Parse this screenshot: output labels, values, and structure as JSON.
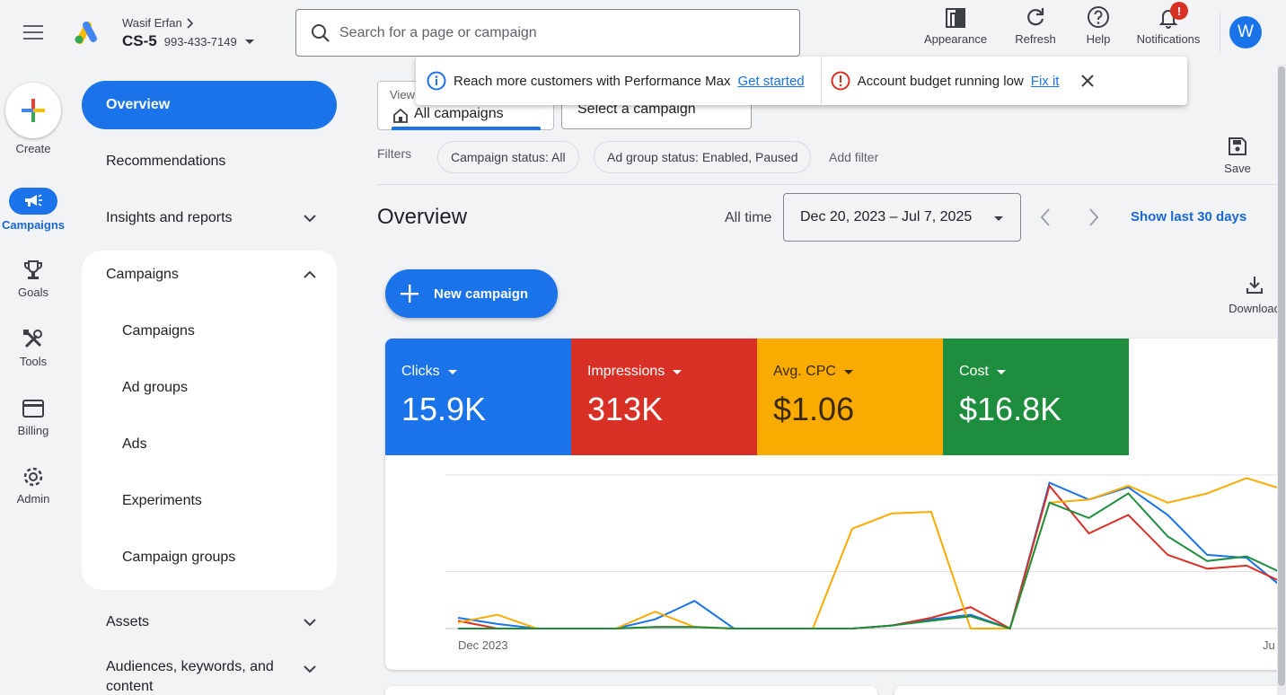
{
  "header": {
    "account_name": "Wasif Erfan",
    "account_code": "CS-5",
    "account_id": "993-433-7149",
    "search_placeholder": "Search for a page or campaign",
    "actions": {
      "appearance": "Appearance",
      "refresh": "Refresh",
      "help": "Help",
      "notifications": "Notifications"
    },
    "notification_badge": "!",
    "avatar_initial": "W"
  },
  "rail": {
    "create": "Create",
    "campaigns": "Campaigns",
    "goals": "Goals",
    "tools": "Tools",
    "billing": "Billing",
    "admin": "Admin"
  },
  "nav": {
    "overview": "Overview",
    "recommendations": "Recommendations",
    "insights": "Insights and reports",
    "campaigns_group": "Campaigns",
    "sub": [
      "Campaigns",
      "Ad groups",
      "Ads",
      "Experiments",
      "Campaign groups"
    ],
    "assets": "Assets",
    "audiences": "Audiences, keywords, and content"
  },
  "view": {
    "caption": "View",
    "value": "All campaigns",
    "campaign_select": "Select a campaign"
  },
  "banner": {
    "pmax_text": "Reach more customers with Performance Max",
    "pmax_link": "Get started",
    "budget_text": "Account budget running low",
    "budget_link": "Fix it"
  },
  "filters": {
    "label": "Filters",
    "chips": [
      "Campaign status: All",
      "Ad group status: Enabled, Paused"
    ],
    "add": "Add filter",
    "save": "Save"
  },
  "overview": {
    "title": "Overview",
    "range_label": "All time",
    "date_range": "Dec 20, 2023 – Jul 7, 2025",
    "show_last": "Show last 30 days",
    "new_campaign": "New campaign",
    "download": "Download"
  },
  "metrics": [
    {
      "name": "Clicks",
      "value": "15.9K",
      "color": "#1a73e8"
    },
    {
      "name": "Impressions",
      "value": "313K",
      "color": "#d93025"
    },
    {
      "name": "Avg. CPC",
      "value": "$1.06",
      "color": "#f9ab00"
    },
    {
      "name": "Cost",
      "value": "$16.8K",
      "color": "#1e8e3e"
    }
  ],
  "chart_data": {
    "type": "line",
    "x_tick_labels": [
      "Dec 2023",
      "Ju"
    ],
    "y_scale": "relative (0–100, no tick labels)",
    "grid": true,
    "series": [
      {
        "color": "#1a73e8",
        "values": [
          7,
          3,
          0,
          0,
          0,
          6,
          18,
          0,
          0,
          0,
          0,
          2,
          6,
          9,
          0,
          95,
          84,
          92,
          74,
          48,
          46,
          25
        ]
      },
      {
        "color": "#d93025",
        "values": [
          5,
          0,
          0,
          0,
          0,
          1,
          1,
          0,
          0,
          0,
          0,
          2,
          7,
          14,
          0,
          93,
          62,
          74,
          48,
          39,
          41,
          29
        ]
      },
      {
        "color": "#f9ab00",
        "values": [
          4,
          9,
          0,
          0,
          0,
          11,
          1,
          0,
          0,
          0,
          65,
          75,
          76,
          0,
          0,
          82,
          84,
          93,
          82,
          88,
          98,
          90
        ]
      },
      {
        "color": "#1e8e3e",
        "values": [
          0,
          0,
          0,
          0,
          0,
          1,
          1,
          0,
          0,
          0,
          0,
          2,
          5,
          8,
          0,
          82,
          72,
          88,
          60,
          44,
          47,
          35
        ]
      }
    ]
  }
}
